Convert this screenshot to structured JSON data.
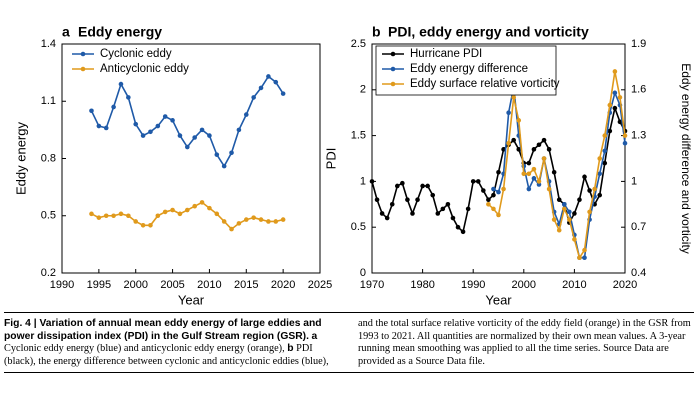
{
  "chart_data": [
    {
      "type": "line",
      "panel": "a",
      "title": "Eddy energy",
      "xlabel": "Year",
      "ylabel": "Eddy energy",
      "x": [
        1994,
        1995,
        1996,
        1997,
        1998,
        1999,
        2000,
        2001,
        2002,
        2003,
        2004,
        2005,
        2006,
        2007,
        2008,
        2009,
        2010,
        2011,
        2012,
        2013,
        2014,
        2015,
        2016,
        2017,
        2018,
        2019,
        2020
      ],
      "series": [
        {
          "name": "Cyclonic eddy",
          "color": "#1f5aa8",
          "values": [
            1.05,
            0.97,
            0.96,
            1.07,
            1.19,
            1.12,
            0.98,
            0.92,
            0.94,
            0.97,
            1.02,
            1.0,
            0.92,
            0.86,
            0.91,
            0.95,
            0.92,
            0.82,
            0.76,
            0.83,
            0.95,
            1.03,
            1.12,
            1.17,
            1.23,
            1.2,
            1.14
          ]
        },
        {
          "name": "Anticyclonic eddy",
          "color": "#e09a1c",
          "values": [
            0.51,
            0.49,
            0.5,
            0.5,
            0.51,
            0.5,
            0.47,
            0.45,
            0.45,
            0.5,
            0.52,
            0.53,
            0.51,
            0.53,
            0.55,
            0.57,
            0.54,
            0.51,
            0.47,
            0.43,
            0.46,
            0.48,
            0.49,
            0.48,
            0.47,
            0.47,
            0.48
          ]
        }
      ],
      "xlim": [
        1990,
        2025
      ],
      "xticks": [
        1990,
        1995,
        2000,
        2005,
        2010,
        2015,
        2020,
        2025
      ],
      "ylim": [
        0.2,
        1.4
      ],
      "yticks": [
        0.2,
        0.5,
        0.8,
        1.1,
        1.4
      ],
      "legend": "upper-left"
    },
    {
      "type": "line",
      "panel": "b",
      "title": "PDI, eddy energy and vorticity",
      "xlabel": "Year",
      "ylabel": "PDI",
      "y2label": "Eddy energy difference and vorticity",
      "x": [
        1970,
        1971,
        1972,
        1973,
        1974,
        1975,
        1976,
        1977,
        1978,
        1979,
        1980,
        1981,
        1982,
        1983,
        1984,
        1985,
        1986,
        1987,
        1988,
        1989,
        1990,
        1991,
        1992,
        1993,
        1994,
        1995,
        1996,
        1997,
        1998,
        1999,
        2000,
        2001,
        2002,
        2003,
        2004,
        2005,
        2006,
        2007,
        2008,
        2009,
        2010,
        2011,
        2012,
        2013,
        2014,
        2015,
        2016,
        2017,
        2018,
        2019,
        2020
      ],
      "series": [
        {
          "name": "Hurricane PDI",
          "color": "#000000",
          "values": [
            1.0,
            0.8,
            0.65,
            0.6,
            0.75,
            0.95,
            0.98,
            0.8,
            0.65,
            0.8,
            0.95,
            0.95,
            0.85,
            0.65,
            0.7,
            0.75,
            0.6,
            0.5,
            0.45,
            0.7,
            1.0,
            1.0,
            0.9,
            0.8,
            0.85,
            1.1,
            1.35,
            1.4,
            1.45,
            1.35,
            1.2,
            1.2,
            1.35,
            1.4,
            1.45,
            1.35,
            1.1,
            0.8,
            0.75,
            0.55,
            0.65,
            0.8,
            1.05,
            0.9,
            0.75,
            0.85,
            1.2,
            1.55,
            1.8,
            1.65,
            1.55
          ]
        },
        {
          "name": "Eddy energy difference",
          "color": "#1f5aa8",
          "axis": "y2",
          "values": [
            null,
            null,
            null,
            null,
            null,
            null,
            null,
            null,
            null,
            null,
            null,
            null,
            null,
            null,
            null,
            null,
            null,
            null,
            null,
            null,
            null,
            null,
            null,
            null,
            0.95,
            0.93,
            1.05,
            1.45,
            1.62,
            1.3,
            1.1,
            0.95,
            1.02,
            0.98,
            1.15,
            1.0,
            0.8,
            0.72,
            0.85,
            0.8,
            0.65,
            0.5,
            0.5,
            0.75,
            0.9,
            1.05,
            1.2,
            1.45,
            1.58,
            1.5,
            1.25
          ]
        },
        {
          "name": "Eddy surface relative vorticity",
          "color": "#e09a1c",
          "axis": "y2",
          "values": [
            null,
            null,
            null,
            null,
            null,
            null,
            null,
            null,
            null,
            null,
            null,
            null,
            null,
            null,
            null,
            null,
            null,
            null,
            null,
            null,
            null,
            null,
            null,
            0.85,
            0.82,
            0.78,
            0.95,
            1.25,
            1.55,
            1.4,
            1.05,
            1.05,
            1.08,
            1.0,
            1.15,
            0.95,
            0.75,
            0.68,
            0.82,
            0.75,
            0.62,
            0.5,
            0.55,
            0.8,
            0.95,
            1.15,
            1.3,
            1.5,
            1.72,
            1.55,
            1.3
          ]
        }
      ],
      "xlim": [
        1970,
        2020
      ],
      "xticks": [
        1970,
        1980,
        1990,
        2000,
        2010,
        2020
      ],
      "ylim": [
        0,
        2.5
      ],
      "yticks": [
        0,
        0.5,
        1,
        1.5,
        2,
        2.5
      ],
      "y2lim": [
        0.4,
        1.9
      ],
      "y2ticks": [
        0.4,
        0.7,
        1,
        1.3,
        1.6,
        1.9
      ],
      "legend": "upper-left"
    }
  ],
  "caption": {
    "segments": [
      "Fig. 4 | Variation of annual mean eddy energy of large eddies and power dissipation index (PDI) in the Gulf Stream region (GSR).",
      "a",
      "Cyclonic eddy energy (blue) and anticyclonic eddy energy (orange),",
      "b",
      "PDI (black), the energy difference between cyclonic and anticyclonic eddies (blue), and the total surface relative vorticity of the eddy field (orange) in the GSR from 1993 to 2021. All quantities are normalized by their own mean values. A 3-year running mean smoothing was applied to all the time series. Source Data are provided as a Source Data file."
    ]
  }
}
